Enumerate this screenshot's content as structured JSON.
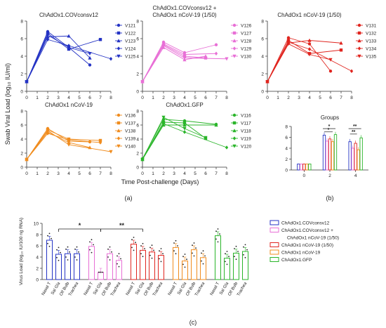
{
  "figure": {
    "y_axis_label": "Swab Viral Load (log₁₀ IU/ml)",
    "x_axis_label": "Time Post-challenge (Days)",
    "panel_a_caption": "(a)",
    "panel_b_caption": "(b)",
    "panel_c_caption": "(c)"
  },
  "colors": {
    "blue": "#2433c4",
    "pink": "#e86fd6",
    "red": "#e0251f",
    "orange": "#f08c1e",
    "green": "#2ab52a"
  },
  "chart_data": [
    {
      "type": "line",
      "panel": "a1",
      "title": "ChAdOx1.COVconsv12",
      "title2": "",
      "color": "blue",
      "x": [
        0,
        1,
        2,
        3,
        4,
        5,
        6,
        7,
        8
      ],
      "ylim": [
        0,
        8
      ],
      "series": [
        {
          "name": "V121",
          "points": [
            [
              0,
              1.1
            ],
            [
              2,
              6.8
            ],
            [
              4,
              5.0
            ],
            [
              6,
              3.0
            ]
          ]
        },
        {
          "name": "V122",
          "points": [
            [
              0,
              1.1
            ],
            [
              2,
              6.6
            ],
            [
              4,
              4.8
            ],
            [
              7,
              5.9
            ]
          ]
        },
        {
          "name": "V123",
          "points": [
            [
              0,
              1.1
            ],
            [
              2,
              6.2
            ],
            [
              4,
              6.3
            ],
            [
              6,
              3.8
            ]
          ]
        },
        {
          "name": "V124",
          "points": [
            [
              0,
              1.1
            ],
            [
              2,
              5.9
            ],
            [
              4,
              5.2
            ],
            [
              8,
              3.7
            ]
          ]
        },
        {
          "name": "V125",
          "points": [
            [
              0,
              1.1
            ],
            [
              2,
              6.4
            ],
            [
              4,
              5.0
            ],
            [
              6,
              4.3
            ]
          ]
        }
      ]
    },
    {
      "type": "line",
      "panel": "a2",
      "title": "ChAdOx1.COVconsv12 +",
      "title2": "ChAdOx1 nCoV-19 (1/50)",
      "color": "pink",
      "x": [
        0,
        1,
        2,
        3,
        4,
        5,
        6,
        7,
        8
      ],
      "ylim": [
        0,
        8
      ],
      "series": [
        {
          "name": "V126",
          "points": [
            [
              0,
              1.1
            ],
            [
              2,
              5.6
            ],
            [
              4,
              4.4
            ],
            [
              7,
              5.3
            ]
          ]
        },
        {
          "name": "V127",
          "points": [
            [
              0,
              1.1
            ],
            [
              2,
              5.3
            ],
            [
              4,
              4.0
            ],
            [
              6,
              3.8
            ]
          ]
        },
        {
          "name": "V128",
          "points": [
            [
              0,
              1.1
            ],
            [
              2,
              5.0
            ],
            [
              4,
              3.6
            ],
            [
              6,
              4.0
            ]
          ]
        },
        {
          "name": "V129",
          "points": [
            [
              0,
              1.1
            ],
            [
              2,
              5.4
            ],
            [
              4,
              4.2
            ],
            [
              7,
              4.3
            ]
          ]
        },
        {
          "name": "V130",
          "points": [
            [
              0,
              1.1
            ],
            [
              2,
              5.2
            ],
            [
              4,
              3.8
            ],
            [
              8,
              3.7
            ]
          ]
        }
      ]
    },
    {
      "type": "line",
      "panel": "a3",
      "title": "ChAdOx1 nCoV-19 (1/50)",
      "title2": "",
      "color": "red",
      "x": [
        0,
        1,
        2,
        3,
        4,
        5,
        6,
        7,
        8
      ],
      "ylim": [
        0,
        8
      ],
      "series": [
        {
          "name": "V131",
          "points": [
            [
              0,
              1.1
            ],
            [
              2,
              6.1
            ],
            [
              4,
              5.4
            ],
            [
              6,
              2.3
            ]
          ]
        },
        {
          "name": "V132",
          "points": [
            [
              0,
              1.1
            ],
            [
              2,
              5.8
            ],
            [
              4,
              4.3
            ],
            [
              7,
              4.7
            ]
          ]
        },
        {
          "name": "V133",
          "points": [
            [
              0,
              1.1
            ],
            [
              2,
              5.5
            ],
            [
              4,
              5.8
            ],
            [
              7,
              5.5
            ]
          ]
        },
        {
          "name": "V134",
          "points": [
            [
              0,
              1.1
            ],
            [
              2,
              5.6
            ],
            [
              4,
              4.8
            ],
            [
              8,
              2.3
            ]
          ]
        },
        {
          "name": "V135",
          "points": [
            [
              0,
              1.1
            ],
            [
              2,
              5.4
            ],
            [
              4,
              4.2
            ],
            [
              6,
              3.6
            ]
          ]
        }
      ]
    },
    {
      "type": "line",
      "panel": "a4",
      "title": "ChAdOx1 nCoV-19",
      "title2": "",
      "color": "orange",
      "x": [
        0,
        1,
        2,
        3,
        4,
        5,
        6,
        7,
        8
      ],
      "ylim": [
        0,
        8
      ],
      "series": [
        {
          "name": "V136",
          "points": [
            [
              0,
              1.1
            ],
            [
              2,
              5.5
            ],
            [
              4,
              3.7
            ],
            [
              6,
              3.6
            ]
          ]
        },
        {
          "name": "V137",
          "points": [
            [
              0,
              1.1
            ],
            [
              2,
              5.3
            ],
            [
              4,
              4.0
            ],
            [
              7,
              3.8
            ]
          ]
        },
        {
          "name": "V138",
          "points": [
            [
              0,
              1.1
            ],
            [
              2,
              5.0
            ],
            [
              4,
              3.5
            ],
            [
              6,
              2.8
            ]
          ]
        },
        {
          "name": "V139",
          "points": [
            [
              0,
              1.1
            ],
            [
              2,
              4.8
            ],
            [
              4,
              3.9
            ],
            [
              7,
              3.5
            ]
          ]
        },
        {
          "name": "V140",
          "points": [
            [
              0,
              1.1
            ],
            [
              2,
              5.2
            ],
            [
              4,
              3.2
            ],
            [
              8,
              2.2
            ]
          ]
        }
      ]
    },
    {
      "type": "line",
      "panel": "a5",
      "title": "ChAdOx1.GFP",
      "title2": "",
      "color": "green",
      "x": [
        0,
        1,
        2,
        3,
        4,
        5,
        6,
        7,
        8
      ],
      "ylim": [
        0,
        8
      ],
      "series": [
        {
          "name": "V116",
          "points": [
            [
              0,
              1.2
            ],
            [
              2,
              6.8
            ],
            [
              4,
              6.6
            ],
            [
              7,
              6.1
            ]
          ]
        },
        {
          "name": "V117",
          "points": [
            [
              0,
              1.1
            ],
            [
              2,
              6.4
            ],
            [
              4,
              6.3
            ],
            [
              6,
              4.1
            ]
          ]
        },
        {
          "name": "V118",
          "points": [
            [
              0,
              1.1
            ],
            [
              2,
              6.0
            ],
            [
              4,
              6.0
            ],
            [
              7,
              6.0
            ]
          ]
        },
        {
          "name": "V119",
          "points": [
            [
              0,
              1.1
            ],
            [
              2,
              6.2
            ],
            [
              4,
              5.0
            ],
            [
              8,
              2.8
            ]
          ]
        },
        {
          "name": "V120",
          "points": [
            [
              0,
              1.1
            ],
            [
              2,
              7.1
            ],
            [
              4,
              5.5
            ],
            [
              6,
              4.2
            ]
          ]
        }
      ]
    },
    {
      "type": "bar",
      "panel": "b",
      "title": "Groups",
      "categories": [
        "0",
        "2",
        "4"
      ],
      "ylim": [
        0,
        8
      ],
      "group_colors": [
        "blue",
        "pink",
        "red",
        "orange",
        "green"
      ],
      "series": [
        {
          "color": "blue",
          "values": [
            1.1,
            6.4,
            5.2
          ]
        },
        {
          "color": "pink",
          "values": [
            1.1,
            5.3,
            4.0
          ]
        },
        {
          "color": "red",
          "values": [
            1.1,
            5.7,
            4.9
          ]
        },
        {
          "color": "orange",
          "values": [
            1.1,
            5.2,
            3.7
          ]
        },
        {
          "color": "green",
          "values": [
            1.1,
            6.5,
            5.9
          ]
        }
      ],
      "significance": [
        "*",
        "*",
        "**",
        "**"
      ]
    },
    {
      "type": "bar",
      "panel": "c",
      "ylabel": "Virus Load (log₁₀ IU/100 ng RNA)",
      "ylim": [
        0,
        10
      ],
      "categories": [
        "Nasal T",
        "Sal Gla",
        "Olf Bulb",
        "Trachea"
      ],
      "groups": [
        {
          "color": "blue",
          "values": [
            7.0,
            4.5,
            4.6,
            4.6
          ]
        },
        {
          "color": "pink",
          "values": [
            5.9,
            1.3,
            4.6,
            3.4
          ]
        },
        {
          "color": "red",
          "values": [
            6.3,
            5.2,
            4.9,
            4.3
          ]
        },
        {
          "color": "orange",
          "values": [
            5.7,
            3.3,
            5.3,
            3.9
          ]
        },
        {
          "color": "green",
          "values": [
            7.8,
            3.8,
            4.7,
            5.0
          ]
        }
      ],
      "significance": [
        "*",
        "**"
      ],
      "legend": [
        {
          "color": "blue",
          "label": "ChAdOx1.COVconsv12"
        },
        {
          "color": "pink",
          "label": "ChAdOx1.COVconsv12 +"
        },
        {
          "color": "pink",
          "label": "ChAdOx1 nCoV-19 (1/50)",
          "indent": true
        },
        {
          "color": "red",
          "label": "ChAdOx1 nCoV-19 (1/50)"
        },
        {
          "color": "orange",
          "label": "ChAdOx1 nCoV-19"
        },
        {
          "color": "green",
          "label": "ChAdOx1.GFP"
        }
      ]
    }
  ]
}
